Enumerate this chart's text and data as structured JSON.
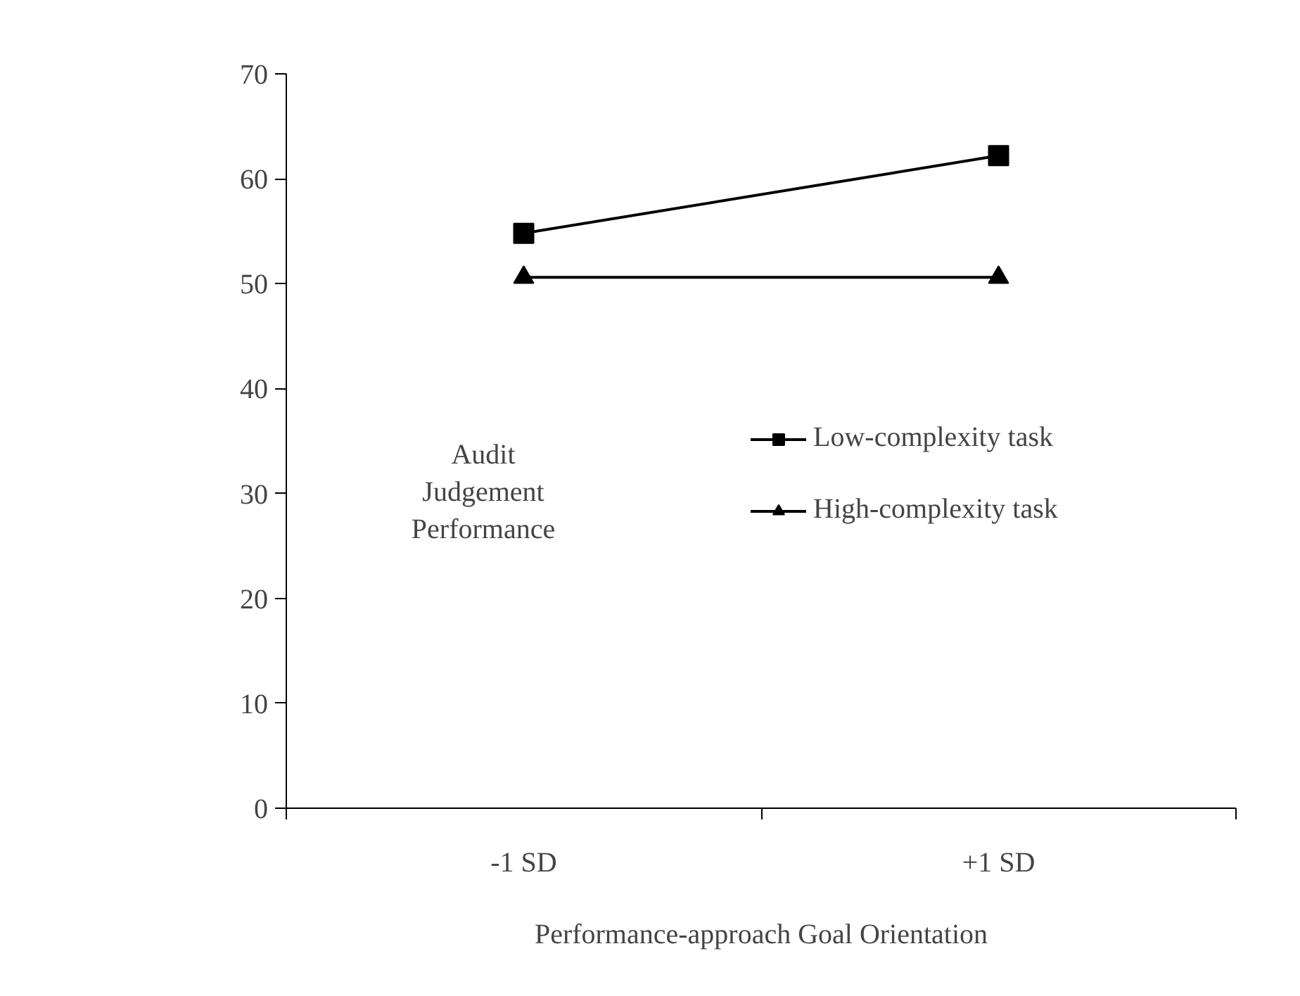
{
  "chart_data": {
    "type": "line",
    "xlabel": "Performance-approach Goal Orientation",
    "ylabel": "Audit Judgement Performance",
    "categories": [
      "-1 SD",
      "+1 SD"
    ],
    "series": [
      {
        "name": "Low-complexity task",
        "color": "#000000",
        "marker": "square",
        "values": [
          54.8,
          62.2
        ]
      },
      {
        "name": "High-complexity task",
        "color": "#000000",
        "marker": "triangle",
        "values": [
          50.6,
          50.6
        ]
      }
    ],
    "ylim": [
      0,
      70
    ],
    "yticks": [
      0,
      10,
      20,
      30,
      40,
      50,
      60,
      70
    ],
    "grid": false,
    "legend": "right",
    "line_style": "solid"
  }
}
